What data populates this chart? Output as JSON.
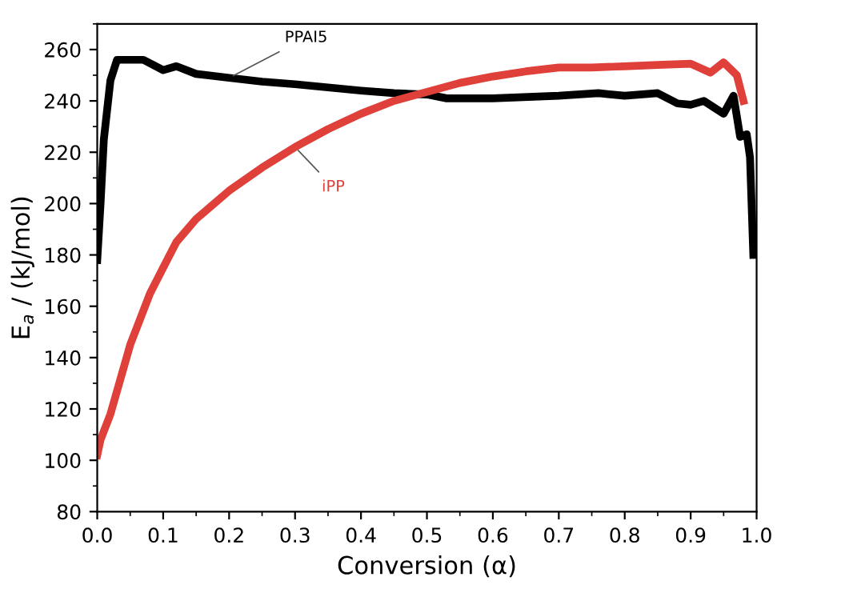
{
  "chart_data": {
    "type": "line",
    "xlabel": "Conversion (α)",
    "ylabel": "E$_{a}$ / (kJ/mol)",
    "xlim": [
      0,
      1.0
    ],
    "ylim": [
      80,
      270
    ],
    "xticks": [
      {
        "value": 0,
        "label": "0.0"
      },
      0.1,
      0.2,
      0.3,
      0.4,
      0.5,
      0.6,
      0.7,
      0.8,
      0.9,
      {
        "value": 1,
        "label": "1.0"
      }
    ],
    "yticks": [
      80,
      100,
      120,
      140,
      160,
      180,
      200,
      220,
      240,
      260
    ],
    "grid": false,
    "legend": false,
    "series": [
      {
        "name": "PPAI5",
        "color": "#000000",
        "x": [
          0,
          0.005,
          0.01,
          0.02,
          0.03,
          0.05,
          0.07,
          0.1,
          0.12,
          0.15,
          0.2,
          0.25,
          0.3,
          0.4,
          0.45,
          0.5,
          0.53,
          0.6,
          0.7,
          0.76,
          0.8,
          0.85,
          0.88,
          0.9,
          0.92,
          0.95,
          0.965,
          0.975,
          0.985,
          0.99,
          0.995
        ],
        "values": [
          178,
          200,
          225,
          248,
          256,
          256,
          256,
          252,
          253.5,
          250.5,
          249,
          247.5,
          246.5,
          244,
          243,
          242.5,
          241,
          241,
          242,
          243,
          242,
          243,
          239,
          238.5,
          240,
          235,
          242,
          226,
          227,
          218,
          180
        ]
      },
      {
        "name": "iPP",
        "color": "#e0403a",
        "x": [
          0,
          0.005,
          0.02,
          0.05,
          0.08,
          0.1,
          0.12,
          0.15,
          0.2,
          0.25,
          0.3,
          0.35,
          0.4,
          0.45,
          0.5,
          0.55,
          0.6,
          0.65,
          0.7,
          0.75,
          0.8,
          0.85,
          0.9,
          0.93,
          0.95,
          0.97,
          0.98
        ],
        "values": [
          102,
          108,
          118,
          145,
          165,
          175,
          185,
          194,
          205,
          214,
          222,
          229,
          235,
          240,
          243.5,
          247,
          249.5,
          251.5,
          253,
          253,
          253.5,
          254,
          254.5,
          251,
          255,
          250,
          240
        ]
      }
    ]
  }
}
